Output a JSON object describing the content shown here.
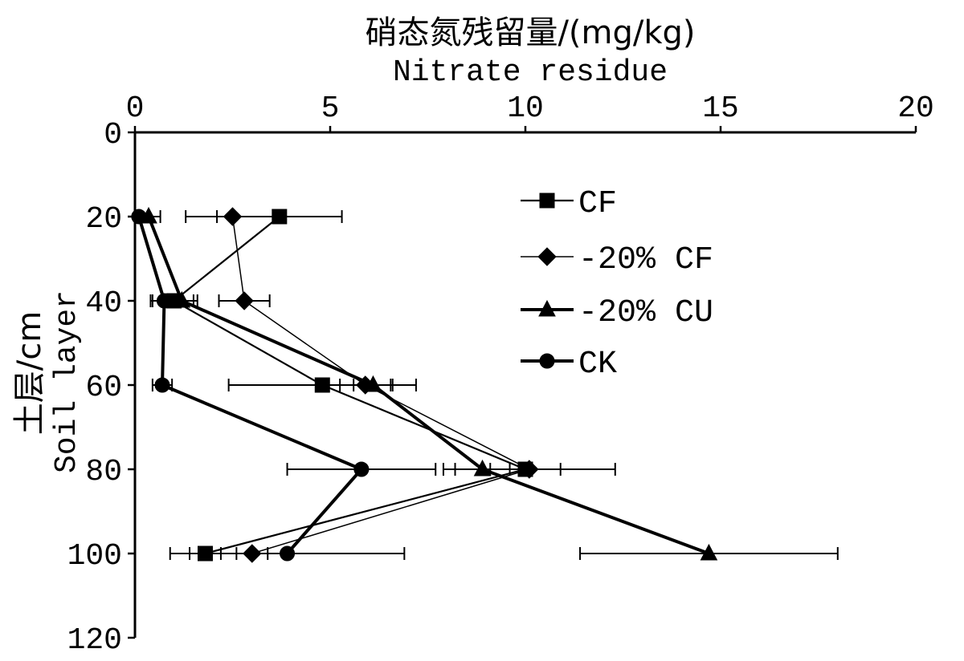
{
  "chart_data": {
    "type": "line",
    "xlabel": [
      "硝态氮残留量/(mg/kg)",
      "Nitrate residue"
    ],
    "ylabel": [
      "土层/cm",
      "Soil layer"
    ],
    "x_axis_position": "top",
    "y_inverted": true,
    "xlim": [
      0,
      20
    ],
    "ylim": [
      0,
      120
    ],
    "xticks": [
      0,
      5,
      10,
      15,
      20
    ],
    "yticks": [
      0,
      20,
      40,
      60,
      80,
      100,
      120
    ],
    "grid": false,
    "legend_position": "upper-right",
    "y": [
      20,
      40,
      60,
      80,
      100
    ],
    "series": [
      {
        "name": "CF",
        "marker": "square",
        "color": "#000000",
        "values": [
          3.7,
          1.0,
          4.8,
          10.0,
          1.8
        ],
        "error": [
          1.6,
          0.6,
          2.4,
          0.9,
          0.4
        ]
      },
      {
        "name": "-20% CF",
        "marker": "diamond",
        "color": "#000000",
        "values": [
          2.5,
          2.8,
          5.9,
          10.1,
          3.0
        ],
        "error": [
          1.2,
          0.65,
          0.65,
          2.2,
          0.4
        ]
      },
      {
        "name": "-20% CU",
        "marker": "triangle",
        "color": "#000000",
        "values": [
          0.35,
          1.2,
          6.1,
          8.9,
          14.7
        ],
        "error": [
          0.3,
          0.3,
          0.5,
          0.7,
          3.3
        ]
      },
      {
        "name": "CK",
        "marker": "circle",
        "color": "#000000",
        "values": [
          0.1,
          0.75,
          0.7,
          5.8,
          3.9
        ],
        "error": [
          0,
          0.3,
          0.25,
          1.9,
          3.0
        ]
      }
    ]
  }
}
